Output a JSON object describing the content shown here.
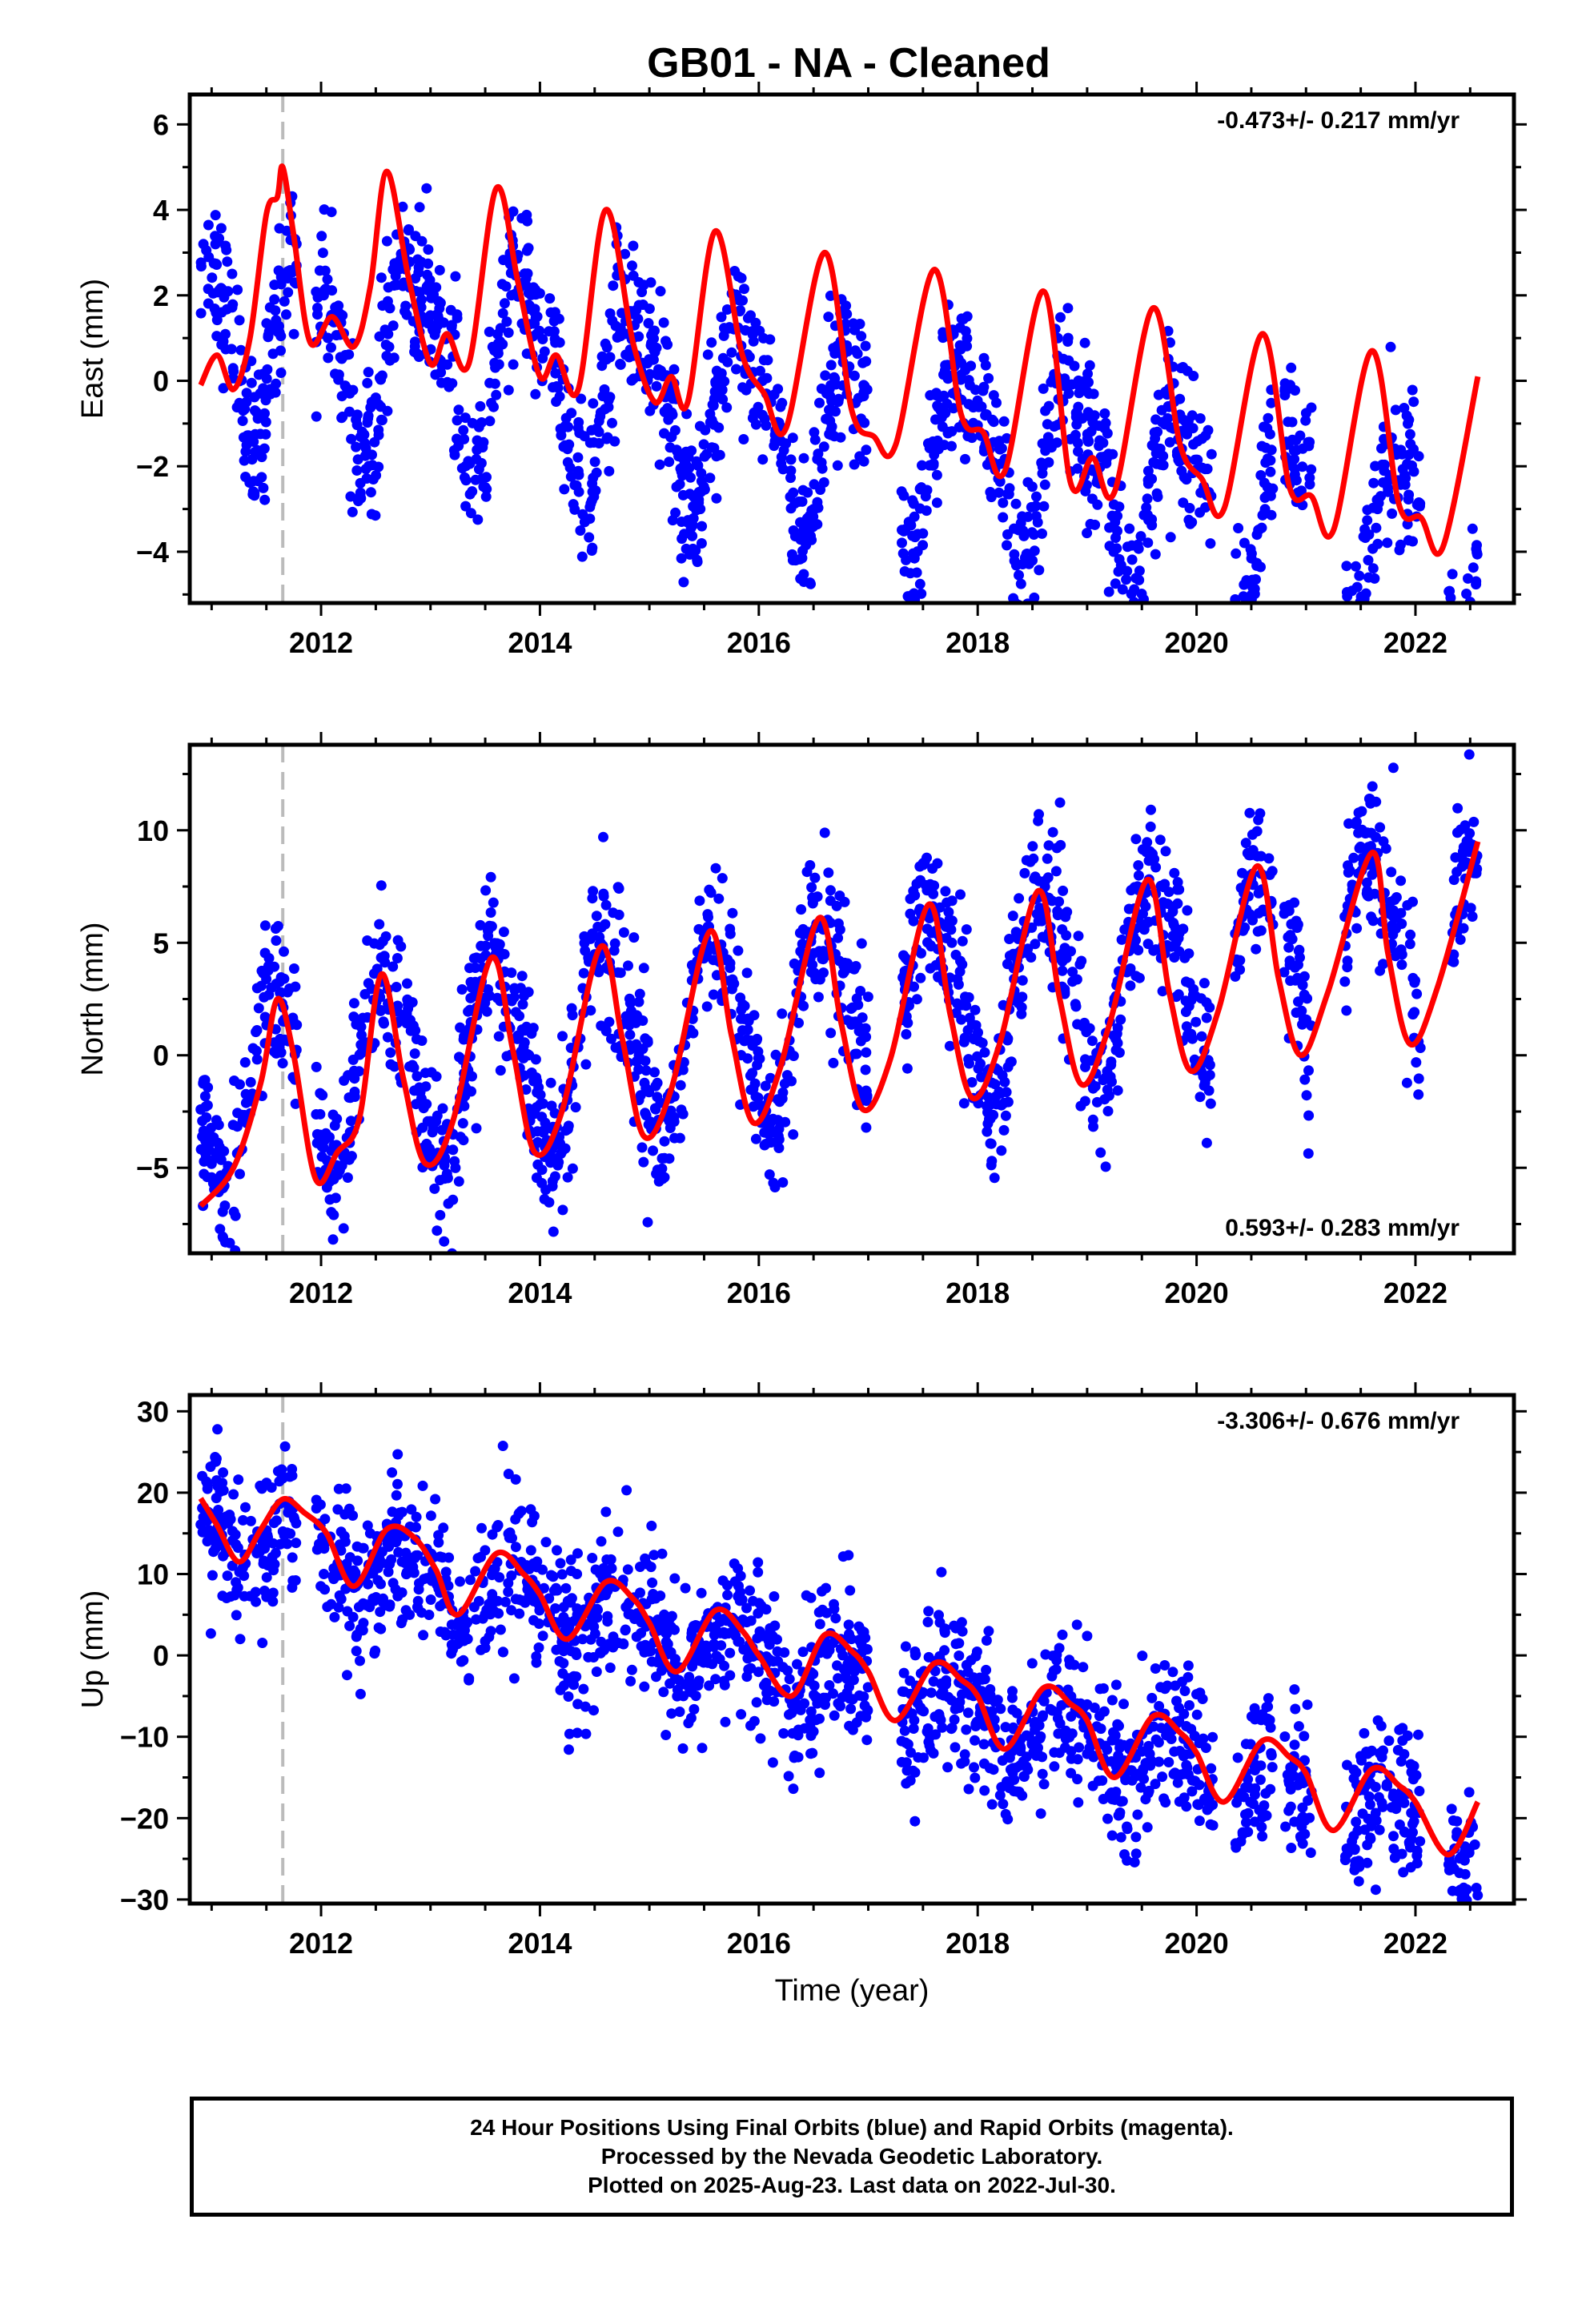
{
  "page": {
    "title": "GB01  - NA - Cleaned",
    "xlabel": "Time (year)",
    "footer_lines": [
      "24 Hour Positions Using Final Orbits (blue) and Rapid Orbits (magenta).",
      "Processed by the Nevada Geodetic Laboratory.",
      "Plotted on 2025-Aug-23. Last data on 2022-Jul-30."
    ],
    "colors": {
      "data": "#0000ff",
      "model": "#ff0000",
      "dashed_line": "#bbbbbb",
      "axes": "#000000"
    }
  },
  "chart_data": [
    {
      "type": "scatter",
      "ylabel": "East (mm)",
      "rate_label": "-0.473+/- 0.217 mm/yr",
      "rate_position": "top-right",
      "xlim": [
        2010.8,
        2022.9
      ],
      "ylim": [
        -5.2,
        6.7
      ],
      "xticks": [
        2012,
        2014,
        2016,
        2018,
        2020,
        2022
      ],
      "yticks": [
        -4,
        -2,
        0,
        2,
        4,
        6
      ],
      "yticklabels": [
        "−4",
        "−2",
        "0",
        "2",
        "4",
        "6"
      ],
      "event_line_x": 2011.65,
      "trend": {
        "intercept": 1.5,
        "slope": -0.473,
        "ref_year": 2011.0,
        "amp": 2.1,
        "phase": 0.62,
        "amp2": 0.6,
        "start": 2010.9,
        "end": 2022.57
      },
      "model": {
        "x": [
          2010.9,
          2011.05,
          2011.2,
          2011.35,
          2011.5,
          2011.6,
          2011.65,
          2011.75,
          2011.9,
          2012.1,
          2012.3,
          2012.45,
          2012.6,
          2012.8,
          2013.0,
          2013.15,
          2013.35,
          2013.6,
          2013.8,
          2014.0,
          2014.15,
          2014.35,
          2014.6,
          2014.85,
          2015.05,
          2015.2,
          2015.35,
          2015.6,
          2015.85,
          2016.05,
          2016.25,
          2016.6,
          2016.85,
          2017.05,
          2017.25,
          2017.6,
          2017.85,
          2018.05,
          2018.25,
          2018.6,
          2018.85,
          2019.05,
          2019.25,
          2019.6,
          2019.85,
          2020.05,
          2020.25,
          2020.6,
          2020.85,
          2021.05,
          2021.25,
          2021.6,
          2021.85,
          2022.05,
          2022.25,
          2022.57
        ],
        "y": [
          -0.1,
          0.6,
          -0.2,
          1.0,
          3.9,
          4.3,
          5.0,
          3.4,
          0.9,
          1.5,
          0.8,
          2.2,
          4.9,
          2.4,
          0.4,
          1.1,
          0.4,
          4.5,
          2.3,
          0.1,
          0.6,
          -0.2,
          4.0,
          0.9,
          -0.5,
          0.1,
          -0.5,
          3.5,
          0.6,
          -0.3,
          -1.1,
          3.0,
          -0.7,
          -1.3,
          -1.5,
          2.6,
          -0.8,
          -1.2,
          -2.1,
          2.1,
          -2.4,
          -1.8,
          -2.6,
          1.7,
          -1.5,
          -2.3,
          -3.0,
          1.1,
          -2.5,
          -2.7,
          -3.5,
          0.7,
          -2.9,
          -3.2,
          -3.9,
          0.1
        ]
      },
      "scatter_ranges": [
        [
          2010.9,
          2011.5
        ],
        [
          2011.5,
          2011.78
        ],
        [
          2011.95,
          2012.6
        ],
        [
          2012.6,
          2016.05
        ],
        [
          2016.05,
          2017.0
        ],
        [
          2017.3,
          2019.75
        ],
        [
          2019.75,
          2020.15
        ],
        [
          2020.35,
          2020.7
        ],
        [
          2020.8,
          2021.05
        ],
        [
          2021.35,
          2022.05
        ],
        [
          2022.3,
          2022.57
        ]
      ]
    },
    {
      "type": "scatter",
      "ylabel": "North (mm)",
      "rate_label": "0.593+/- 0.283 mm/yr",
      "rate_position": "bottom-right",
      "xlim": [
        2010.8,
        2022.9
      ],
      "ylim": [
        -8.8,
        13.8
      ],
      "xticks": [
        2012,
        2014,
        2016,
        2018,
        2020,
        2022
      ],
      "yticks": [
        -5,
        0,
        5,
        10
      ],
      "yticklabels": [
        "−5",
        "0",
        "5",
        "10"
      ],
      "event_line_x": 2011.65,
      "trend": {
        "intercept": -1.5,
        "slope": 0.593,
        "ref_year": 2011.0,
        "amp": 4.2,
        "phase": 0.35,
        "amp2": 0.8,
        "start": 2010.9,
        "end": 2022.57
      },
      "model": {
        "x": [
          2010.9,
          2011.2,
          2011.45,
          2011.6,
          2011.75,
          2011.95,
          2012.15,
          2012.35,
          2012.55,
          2012.75,
          2012.95,
          2013.2,
          2013.55,
          2013.75,
          2013.95,
          2014.2,
          2014.55,
          2014.75,
          2014.95,
          2015.2,
          2015.55,
          2015.75,
          2015.95,
          2016.2,
          2016.55,
          2016.75,
          2016.95,
          2017.2,
          2017.55,
          2017.75,
          2017.95,
          2018.2,
          2018.55,
          2018.75,
          2018.95,
          2019.2,
          2019.55,
          2019.75,
          2019.95,
          2020.2,
          2020.55,
          2020.75,
          2020.95,
          2021.2,
          2021.6,
          2021.75,
          2021.95,
          2022.2,
          2022.57
        ],
        "y": [
          -6.7,
          -5.0,
          -1.2,
          2.5,
          0.0,
          -5.5,
          -4.3,
          -2.8,
          3.6,
          -1.0,
          -4.8,
          -3.0,
          4.3,
          0.3,
          -4.3,
          -2.5,
          4.8,
          0.8,
          -3.6,
          -1.5,
          5.5,
          0.9,
          -3.0,
          -0.5,
          6.1,
          1.5,
          -2.4,
          -0.2,
          6.7,
          1.8,
          -1.9,
          0.5,
          7.3,
          2.5,
          -1.3,
          1.3,
          7.8,
          2.8,
          -0.7,
          2.0,
          8.4,
          3.4,
          0.0,
          2.8,
          9.0,
          4.5,
          0.5,
          3.0,
          9.5
        ]
      },
      "scatter_ranges": [
        [
          2010.9,
          2011.5
        ],
        [
          2011.5,
          2011.78
        ],
        [
          2011.95,
          2012.6
        ],
        [
          2012.6,
          2016.05
        ],
        [
          2016.05,
          2017.0
        ],
        [
          2017.3,
          2019.75
        ],
        [
          2019.75,
          2020.15
        ],
        [
          2020.35,
          2020.7
        ],
        [
          2020.8,
          2021.05
        ],
        [
          2021.35,
          2022.05
        ],
        [
          2022.3,
          2022.57
        ]
      ]
    },
    {
      "type": "scatter",
      "ylabel": "Up (mm)",
      "rate_label": "-3.306+/- 0.676 mm/yr",
      "rate_position": "top-right",
      "xlim": [
        2010.8,
        2022.9
      ],
      "ylim": [
        -30.5,
        32.0
      ],
      "xticks": [
        2012,
        2014,
        2016,
        2018,
        2020,
        2022
      ],
      "yticks": [
        -30,
        -20,
        -10,
        0,
        10,
        20,
        30
      ],
      "yticklabels": [
        "−30",
        "−20",
        "−10",
        "0",
        "10",
        "20",
        "30"
      ],
      "event_line_x": 2011.65,
      "trend": {
        "intercept": 16.0,
        "slope": -3.306,
        "ref_year": 2011.0,
        "amp": 3.5,
        "phase": 0.55,
        "amp2": 1.0,
        "start": 2010.9,
        "end": 2022.57
      },
      "model": {
        "x": [
          2010.9,
          2011.05,
          2011.25,
          2011.45,
          2011.65,
          2011.85,
          2012.05,
          2012.3,
          2012.6,
          2012.85,
          2013.05,
          2013.25,
          2013.6,
          2013.85,
          2014.0,
          2014.25,
          2014.6,
          2014.85,
          2015.0,
          2015.25,
          2015.6,
          2015.85,
          2016.0,
          2016.3,
          2016.6,
          2016.85,
          2017.0,
          2017.25,
          2017.6,
          2017.85,
          2018.0,
          2018.25,
          2018.6,
          2018.85,
          2019.0,
          2019.25,
          2019.6,
          2019.85,
          2020.0,
          2020.25,
          2020.6,
          2020.85,
          2021.0,
          2021.25,
          2021.6,
          2021.85,
          2022.0,
          2022.3,
          2022.57
        ],
        "y": [
          19.3,
          16.0,
          11.5,
          15.5,
          19.2,
          17.5,
          15.0,
          8.5,
          15.5,
          14.5,
          10.5,
          5.0,
          12.5,
          10.0,
          7.5,
          2.0,
          9.0,
          7.0,
          4.0,
          -2.0,
          5.5,
          3.0,
          0.0,
          -5.0,
          2.5,
          0.5,
          -2.0,
          -8.0,
          -1.0,
          -3.0,
          -5.0,
          -11.5,
          -4.0,
          -6.0,
          -8.0,
          -15.0,
          -7.5,
          -9.5,
          -12.0,
          -18.0,
          -10.5,
          -12.5,
          -14.5,
          -21.5,
          -14.0,
          -16.0,
          -18.0,
          -24.5,
          -18.0
        ]
      },
      "scatter_ranges": [
        [
          2010.9,
          2011.5
        ],
        [
          2011.5,
          2011.78
        ],
        [
          2011.95,
          2012.6
        ],
        [
          2012.6,
          2016.05
        ],
        [
          2016.05,
          2017.0
        ],
        [
          2017.3,
          2019.75
        ],
        [
          2019.75,
          2020.15
        ],
        [
          2020.35,
          2020.7
        ],
        [
          2020.8,
          2021.05
        ],
        [
          2021.35,
          2022.05
        ],
        [
          2022.3,
          2022.57
        ]
      ]
    }
  ]
}
